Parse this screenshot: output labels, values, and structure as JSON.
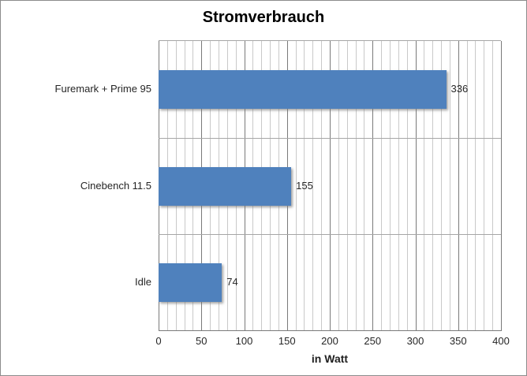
{
  "chart_data": {
    "type": "bar",
    "orientation": "horizontal",
    "title": "Stromverbrauch",
    "categories": [
      "Furemark + Prime 95",
      "Cinebench 11.5",
      "Idle"
    ],
    "values": [
      336,
      155,
      74
    ],
    "data_labels": [
      "336",
      "155",
      "74"
    ],
    "xlabel": "in Watt",
    "xlim": [
      0,
      400
    ],
    "x_major_ticks": [
      0,
      50,
      100,
      150,
      200,
      250,
      300,
      350,
      400
    ],
    "x_minor_step": 10,
    "grid": {
      "vertical_minor": true,
      "vertical_major": true,
      "category_separators": true
    },
    "legend": "none",
    "colors": {
      "bar": "#4F81BD",
      "major_gridline": "#7A7A7A",
      "minor_gridline": "#C9C9C9",
      "separator_gridline": "#A6A6A6",
      "chart_border": "#8C8C8C",
      "text": "#262626",
      "title_text": "#000000",
      "background": "#FFFFFF"
    }
  }
}
